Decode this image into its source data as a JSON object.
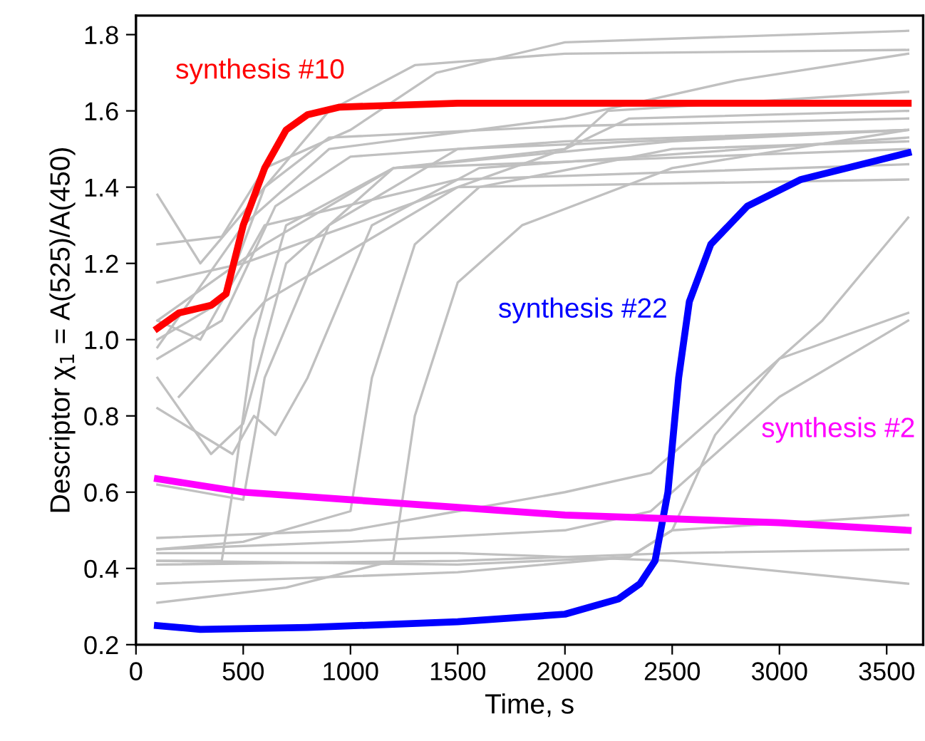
{
  "chart_data": {
    "type": "line",
    "xlabel": "Time, s",
    "ylabel": "Descriptor χ$_{1}$ = A(525)/A(450)",
    "xlim": [
      0,
      3670
    ],
    "ylim": [
      0.2,
      1.85
    ],
    "xticks": [
      0,
      500,
      1000,
      1500,
      2000,
      2500,
      3000,
      3500
    ],
    "yticks": [
      0.2,
      0.4,
      0.6,
      0.8,
      {
        "value": 1.0,
        "label": "1.0"
      },
      1.2,
      1.4,
      1.6,
      1.8
    ],
    "grid": false,
    "legend": false,
    "marker": "none",
    "line_style": "solid",
    "series": [
      {
        "color": "#c0c0c0",
        "x": [
          100,
          300,
          600,
          900,
          1300,
          2000,
          3600
        ],
        "values": [
          1.38,
          1.2,
          1.4,
          1.6,
          1.72,
          1.75,
          1.76
        ]
      },
      {
        "color": "#c0c0c0",
        "x": [
          100,
          400,
          600,
          1000,
          1400,
          2000,
          3600
        ],
        "values": [
          1.25,
          1.27,
          1.45,
          1.55,
          1.7,
          1.78,
          1.81
        ]
      },
      {
        "color": "#c0c0c0",
        "x": [
          100,
          400,
          600,
          900,
          2000,
          3600
        ],
        "values": [
          1.0,
          1.1,
          1.4,
          1.53,
          1.56,
          1.58
        ]
      },
      {
        "color": "#c0c0c0",
        "x": [
          100,
          400,
          650,
          1000,
          2000,
          3600
        ],
        "values": [
          0.95,
          1.05,
          1.35,
          1.48,
          1.52,
          1.55
        ]
      },
      {
        "color": "#c0c0c0",
        "x": [
          100,
          350,
          500,
          700,
          1200,
          3600
        ],
        "values": [
          0.9,
          0.7,
          0.78,
          1.2,
          1.45,
          1.5
        ]
      },
      {
        "color": "#c0c0c0",
        "x": [
          100,
          450,
          550,
          650,
          800,
          1100,
          1600,
          3600
        ],
        "values": [
          0.82,
          0.7,
          0.8,
          0.75,
          0.9,
          1.3,
          1.45,
          1.53
        ]
      },
      {
        "color": "#c0c0c0",
        "x": [
          100,
          400,
          450,
          550,
          700,
          1200,
          2500,
          3600
        ],
        "values": [
          0.42,
          0.42,
          0.6,
          1.0,
          1.3,
          1.45,
          1.52,
          1.55
        ]
      },
      {
        "color": "#c0c0c0",
        "x": [
          100,
          500,
          1000,
          1100,
          1300,
          1600,
          2500,
          3600
        ],
        "values": [
          0.45,
          0.47,
          0.55,
          0.9,
          1.25,
          1.4,
          1.5,
          1.52
        ]
      },
      {
        "color": "#c0c0c0",
        "x": [
          100,
          700,
          1200,
          1300,
          1500,
          1800,
          2500,
          3600
        ],
        "values": [
          0.31,
          0.35,
          0.42,
          0.8,
          1.15,
          1.3,
          1.45,
          1.55
        ]
      },
      {
        "color": "#c0c0c0",
        "x": [
          100,
          500,
          1000,
          1500,
          2000,
          2200,
          3600
        ],
        "values": [
          1.15,
          1.2,
          1.3,
          1.4,
          1.5,
          1.6,
          1.65
        ]
      },
      {
        "color": "#c0c0c0",
        "x": [
          100,
          600,
          1200,
          2000,
          2300,
          3600
        ],
        "values": [
          1.05,
          1.25,
          1.45,
          1.5,
          1.58,
          1.6
        ]
      },
      {
        "color": "#c0c0c0",
        "x": [
          100,
          500,
          900,
          2000,
          2800,
          3600
        ],
        "values": [
          0.98,
          1.3,
          1.5,
          1.58,
          1.68,
          1.75
        ]
      },
      {
        "color": "#c0c0c0",
        "x": [
          200,
          600,
          1500,
          3600
        ],
        "values": [
          0.85,
          1.1,
          1.4,
          1.42
        ]
      },
      {
        "color": "#c0c0c0",
        "x": [
          100,
          1000,
          1500,
          2000,
          2400,
          2700,
          3200,
          3600
        ],
        "values": [
          0.48,
          0.5,
          0.55,
          0.6,
          0.65,
          0.8,
          1.05,
          1.32
        ]
      },
      {
        "color": "#c0c0c0",
        "x": [
          100,
          1000,
          2000,
          2400,
          2700,
          3000,
          3600
        ],
        "values": [
          0.45,
          0.47,
          0.5,
          0.55,
          0.7,
          0.85,
          1.05
        ]
      },
      {
        "color": "#c0c0c0",
        "x": [
          100,
          1500,
          2300,
          2500,
          2700,
          3000,
          3600
        ],
        "values": [
          0.42,
          0.41,
          0.43,
          0.5,
          0.75,
          0.95,
          1.07
        ]
      },
      {
        "color": "#c0c0c0",
        "x": [
          100,
          1500,
          2500,
          3600
        ],
        "values": [
          0.41,
          0.42,
          0.44,
          0.45
        ]
      },
      {
        "color": "#c0c0c0",
        "x": [
          100,
          1500,
          2500,
          3600
        ],
        "values": [
          0.44,
          0.44,
          0.42,
          0.36
        ]
      },
      {
        "color": "#c0c0c0",
        "x": [
          100,
          1500,
          2300,
          2500,
          3600
        ],
        "values": [
          0.36,
          0.39,
          0.43,
          0.5,
          0.54
        ]
      },
      {
        "color": "#c0c0c0",
        "x": [
          100,
          300,
          600,
          1500,
          3600
        ],
        "values": [
          1.05,
          1.0,
          1.3,
          1.42,
          1.46
        ]
      },
      {
        "color": "#c0c0c0",
        "x": [
          100,
          500,
          600,
          900,
          1500,
          3600
        ],
        "values": [
          0.62,
          0.58,
          0.9,
          1.3,
          1.5,
          1.55
        ]
      },
      {
        "name": "synthesis #10",
        "color": "#ff0000",
        "x": [
          100,
          200,
          350,
          420,
          500,
          600,
          700,
          800,
          950,
          1500,
          3600
        ],
        "values": [
          1.03,
          1.07,
          1.09,
          1.12,
          1.3,
          1.45,
          1.55,
          1.59,
          1.61,
          1.62,
          1.62
        ]
      },
      {
        "name": "synthesis #22",
        "color": "#0000ff",
        "x": [
          100,
          300,
          800,
          1500,
          2000,
          2250,
          2350,
          2420,
          2480,
          2530,
          2580,
          2680,
          2850,
          3100,
          3600
        ],
        "values": [
          0.25,
          0.24,
          0.245,
          0.26,
          0.28,
          0.32,
          0.36,
          0.42,
          0.6,
          0.9,
          1.1,
          1.25,
          1.35,
          1.42,
          1.49
        ]
      },
      {
        "name": "synthesis #2",
        "color": "#ff00ff",
        "x": [
          100,
          500,
          1000,
          1500,
          2000,
          2500,
          3000,
          3600
        ],
        "values": [
          0.635,
          0.6,
          0.58,
          0.56,
          0.54,
          0.53,
          0.52,
          0.5
        ]
      }
    ]
  }
}
